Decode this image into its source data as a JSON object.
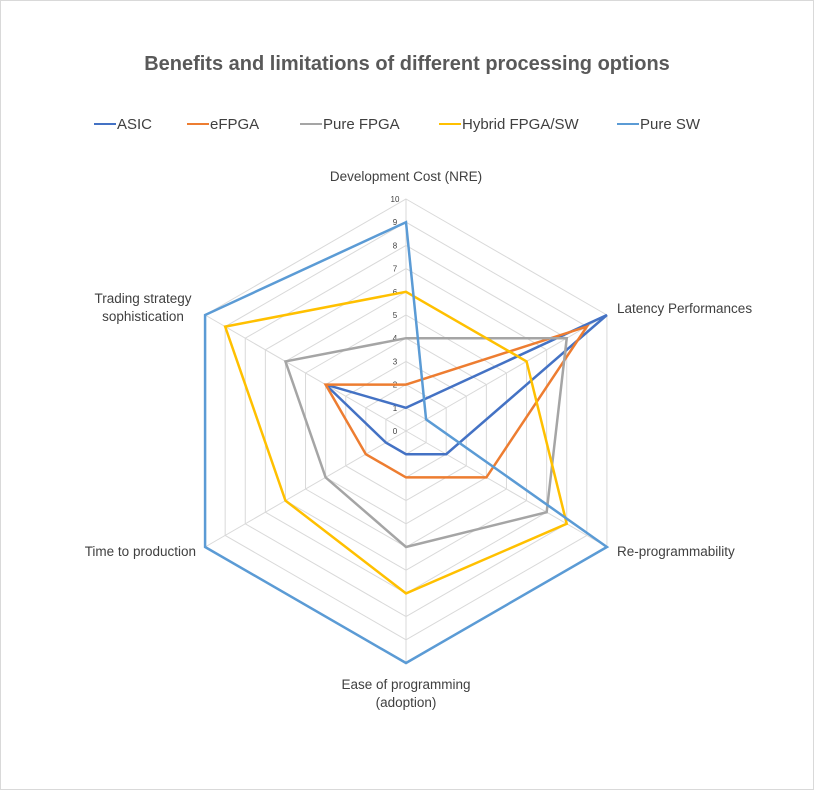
{
  "chart_data": {
    "type": "radar",
    "title": "Benefits and limitations of different processing options",
    "axes": [
      "Development Cost (NRE)",
      "Latency Performances",
      "Re-programmability",
      "Ease of programming (adoption)",
      "Time to production",
      "Trading strategy sophistication"
    ],
    "axis_label_lines": [
      [
        "Development Cost (NRE)"
      ],
      [
        "Latency Performances"
      ],
      [
        "Re-programmability"
      ],
      [
        "Ease of programming",
        "(adoption)"
      ],
      [
        "Time to production"
      ],
      [
        "Trading strategy",
        "sophistication"
      ]
    ],
    "ticks": [
      0,
      1,
      2,
      3,
      4,
      5,
      6,
      7,
      8,
      9,
      10
    ],
    "range": [
      0,
      10
    ],
    "legend_position": "top",
    "grid": true,
    "series": [
      {
        "name": "ASIC",
        "color": "#4472C4",
        "values": [
          1,
          10,
          2,
          1,
          1,
          4
        ]
      },
      {
        "name": "eFPGA",
        "color": "#ED7D31",
        "values": [
          2,
          9,
          4,
          2,
          2,
          4
        ]
      },
      {
        "name": "Pure FPGA",
        "color": "#A5A5A5",
        "values": [
          4,
          8,
          7,
          5,
          4,
          6
        ]
      },
      {
        "name": "Hybrid FPGA/SW",
        "color": "#FFC000",
        "values": [
          6,
          6,
          8,
          7,
          6,
          9
        ]
      },
      {
        "name": "Pure SW",
        "color": "#5B9BD5",
        "values": [
          9,
          1,
          10,
          10,
          10,
          10
        ]
      }
    ]
  }
}
